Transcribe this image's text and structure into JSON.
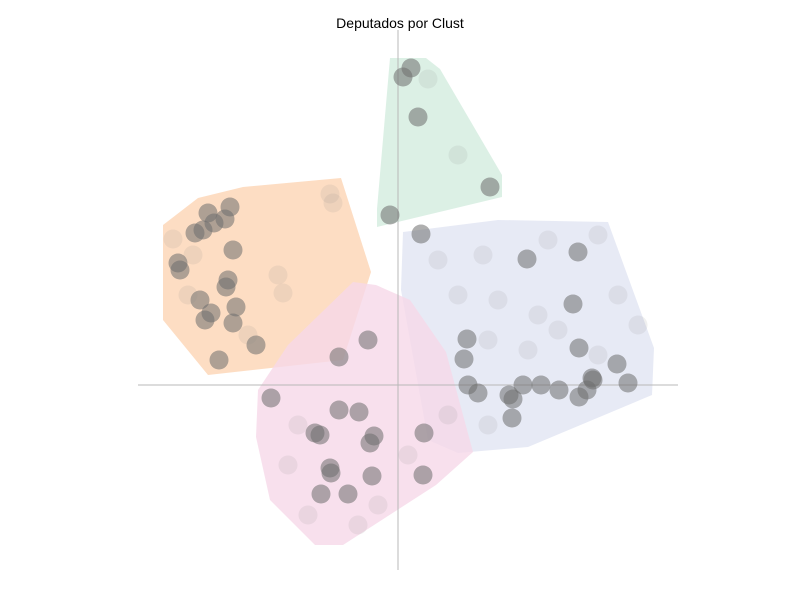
{
  "chart_data": {
    "type": "scatter",
    "title": "Deputados por Clust",
    "xlabel": "",
    "ylabel": "",
    "xlim": [
      -2.6,
      2.8
    ],
    "ylim": [
      -1.85,
      3.55
    ],
    "grid": false,
    "axes_lines_through_origin": true,
    "point_color": "#8a8a8a",
    "point_dark_color": "#6e6e6e",
    "clusters": [
      {
        "color": "#fcd4b4",
        "hull": [
          [
            -2.35,
            1.6
          ],
          [
            -2.0,
            1.87
          ],
          [
            -1.55,
            1.98
          ],
          [
            -0.57,
            2.07
          ],
          [
            -0.27,
            1.13
          ],
          [
            -0.55,
            0.25
          ],
          [
            -1.9,
            0.1
          ],
          [
            -2.35,
            0.65
          ]
        ],
        "points": [
          [
            -1.9,
            1.72
          ],
          [
            -1.68,
            1.78
          ],
          [
            -1.95,
            1.55
          ],
          [
            -1.84,
            1.62
          ],
          [
            -1.73,
            1.66
          ],
          [
            -2.03,
            1.52
          ],
          [
            -1.65,
            1.35
          ],
          [
            -2.2,
            1.22
          ],
          [
            -2.18,
            1.15
          ],
          [
            -1.7,
            1.05
          ],
          [
            -1.72,
            0.98
          ],
          [
            -1.98,
            0.85
          ],
          [
            -1.62,
            0.78
          ],
          [
            -1.87,
            0.72
          ],
          [
            -1.93,
            0.65
          ],
          [
            -1.65,
            0.62
          ],
          [
            -1.42,
            0.4
          ],
          [
            -1.79,
            0.25
          ],
          [
            -0.68,
            1.91
          ],
          [
            -0.65,
            1.82
          ],
          [
            -2.25,
            1.46
          ],
          [
            -1.2,
            1.1
          ],
          [
            -1.15,
            0.92
          ],
          [
            -2.05,
            1.3
          ],
          [
            -1.5,
            0.5
          ],
          [
            -2.1,
            0.9
          ]
        ],
        "dark": [
          true,
          true,
          true,
          true,
          true,
          true,
          true,
          true,
          true,
          true,
          true,
          true,
          true,
          true,
          true,
          true,
          true,
          true,
          false,
          false,
          false,
          false,
          false,
          false,
          false,
          false
        ]
      },
      {
        "color": "#d3ecdf",
        "hull": [
          [
            -0.08,
            3.27
          ],
          [
            0.28,
            3.27
          ],
          [
            0.42,
            3.16
          ],
          [
            1.04,
            2.1
          ],
          [
            1.04,
            1.88
          ],
          [
            -0.21,
            1.58
          ],
          [
            -0.21,
            1.76
          ]
        ],
        "points": [
          [
            0.13,
            3.17
          ],
          [
            0.05,
            3.08
          ],
          [
            0.2,
            2.68
          ],
          [
            0.92,
            1.98
          ],
          [
            -0.08,
            1.7
          ],
          [
            0.3,
            3.06
          ],
          [
            0.6,
            2.3
          ]
        ],
        "dark": [
          true,
          true,
          true,
          true,
          true,
          false,
          false
        ]
      },
      {
        "color": "#e1e5f3",
        "hull": [
          [
            0.05,
            1.53
          ],
          [
            1.0,
            1.65
          ],
          [
            2.1,
            1.63
          ],
          [
            2.56,
            0.37
          ],
          [
            2.54,
            -0.1
          ],
          [
            1.3,
            -0.62
          ],
          [
            0.6,
            -0.68
          ],
          [
            0.3,
            -0.55
          ],
          [
            0.03,
            0.95
          ]
        ],
        "points": [
          [
            0.23,
            1.51
          ],
          [
            1.29,
            1.26
          ],
          [
            1.8,
            1.33
          ],
          [
            1.75,
            0.81
          ],
          [
            0.69,
            0.46
          ],
          [
            0.66,
            0.26
          ],
          [
            1.81,
            0.37
          ],
          [
            2.19,
            0.21
          ],
          [
            0.7,
            0.0
          ],
          [
            0.8,
            -0.08
          ],
          [
            1.11,
            -0.1
          ],
          [
            1.25,
            0.0
          ],
          [
            1.43,
            0.0
          ],
          [
            1.61,
            -0.05
          ],
          [
            1.81,
            -0.12
          ],
          [
            1.89,
            -0.05
          ],
          [
            1.94,
            0.07
          ],
          [
            2.3,
            0.02
          ],
          [
            1.15,
            -0.14
          ],
          [
            1.14,
            -0.33
          ],
          [
            1.95,
            0.05
          ],
          [
            0.4,
            1.25
          ],
          [
            0.85,
            1.3
          ],
          [
            1.5,
            1.45
          ],
          [
            2.0,
            1.5
          ],
          [
            0.6,
            0.9
          ],
          [
            1.0,
            0.85
          ],
          [
            1.4,
            0.7
          ],
          [
            2.2,
            0.9
          ],
          [
            2.4,
            0.6
          ],
          [
            0.9,
            0.45
          ],
          [
            1.6,
            0.55
          ],
          [
            2.0,
            0.3
          ],
          [
            0.5,
            -0.3
          ],
          [
            0.9,
            -0.4
          ],
          [
            1.3,
            0.35
          ]
        ],
        "dark": [
          true,
          true,
          true,
          true,
          true,
          true,
          true,
          true,
          true,
          true,
          true,
          true,
          true,
          true,
          true,
          true,
          true,
          true,
          true,
          true,
          true,
          false,
          false,
          false,
          false,
          false,
          false,
          false,
          false,
          false,
          false,
          false,
          false,
          false,
          false,
          false
        ]
      },
      {
        "color": "#f6d8e8",
        "hull": [
          [
            -0.45,
            1.03
          ],
          [
            -0.22,
            1.0
          ],
          [
            0.12,
            0.85
          ],
          [
            0.48,
            0.33
          ],
          [
            0.75,
            -0.67
          ],
          [
            0.38,
            -1.0
          ],
          [
            -0.55,
            -1.6
          ],
          [
            -0.83,
            -1.6
          ],
          [
            -1.28,
            -1.15
          ],
          [
            -1.42,
            -0.52
          ],
          [
            -1.4,
            -0.05
          ],
          [
            -1.1,
            0.4
          ]
        ],
        "points": [
          [
            -0.3,
            0.45
          ],
          [
            -0.59,
            0.28
          ],
          [
            -1.27,
            -0.13
          ],
          [
            -0.59,
            -0.25
          ],
          [
            -0.39,
            -0.27
          ],
          [
            -0.83,
            -0.48
          ],
          [
            -0.78,
            -0.5
          ],
          [
            -0.24,
            -0.51
          ],
          [
            -0.28,
            -0.58
          ],
          [
            0.26,
            -0.48
          ],
          [
            -0.68,
            -0.83
          ],
          [
            -0.67,
            -0.88
          ],
          [
            -0.26,
            -0.91
          ],
          [
            0.25,
            -0.9
          ],
          [
            -0.77,
            -1.09
          ],
          [
            -0.5,
            -1.09
          ],
          [
            -1.0,
            -0.4
          ],
          [
            -0.9,
            -1.3
          ],
          [
            -0.2,
            -1.2
          ],
          [
            0.1,
            -0.7
          ],
          [
            -1.1,
            -0.8
          ],
          [
            -0.4,
            -1.4
          ]
        ],
        "dark": [
          true,
          true,
          true,
          true,
          true,
          true,
          true,
          true,
          true,
          true,
          true,
          true,
          true,
          true,
          true,
          true,
          false,
          false,
          false,
          false,
          false,
          false
        ]
      }
    ]
  }
}
